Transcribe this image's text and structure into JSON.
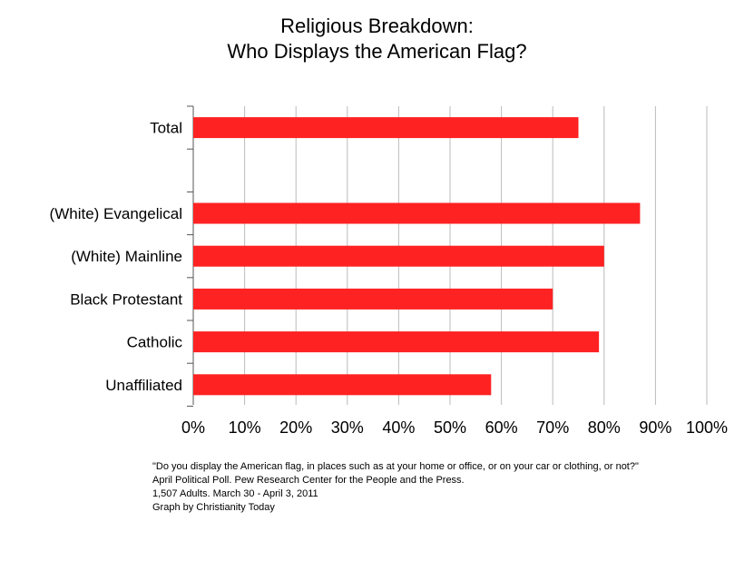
{
  "chart_data": {
    "type": "bar",
    "orientation": "horizontal",
    "title": [
      "Religious Breakdown:",
      "Who Displays the American Flag?"
    ],
    "categories": [
      "Total",
      "",
      "(White) Evangelical",
      "(White) Mainline",
      "Black Protestant",
      "Catholic",
      "Unaffiliated"
    ],
    "values": [
      75,
      null,
      87,
      80,
      70,
      79,
      58
    ],
    "xlim": [
      0,
      100
    ],
    "xticks": [
      0,
      10,
      20,
      30,
      40,
      50,
      60,
      70,
      80,
      90,
      100
    ],
    "xtick_labels": [
      "0%",
      "10%",
      "20%",
      "30%",
      "40%",
      "50%",
      "60%",
      "70%",
      "80%",
      "90%",
      "100%"
    ],
    "xlabel": "",
    "ylabel": "",
    "grid": "vertical",
    "bar_color": "#ff2222",
    "grid_color": "#bbbbbb"
  },
  "footnote": [
    "\"Do you display the American flag, in places such as at your home or office, or on your car or clothing, or not?\"",
    "April Political Poll.  Pew Research Center for the People and the Press.",
    "1,507 Adults.  March 30 - April 3, 2011",
    "Graph by Christianity Today"
  ]
}
